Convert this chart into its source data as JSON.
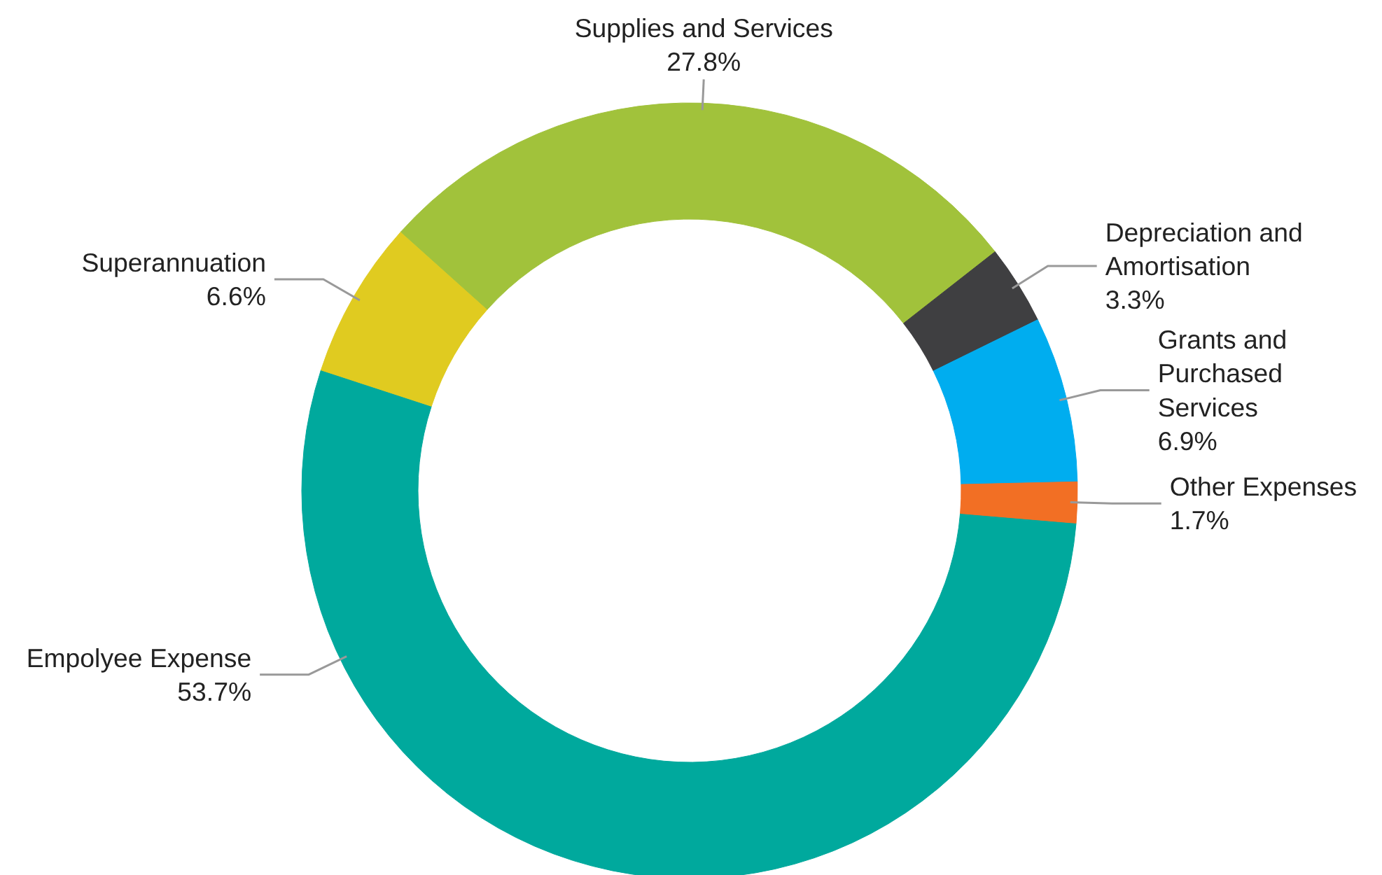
{
  "chart_data": {
    "type": "donut",
    "categories": [
      "Empolyee Expense",
      "Superannuation",
      "Supplies and Services",
      "Depreciation and Amortisation",
      "Grants and Purchased Services",
      "Other Expenses"
    ],
    "values": [
      53.7,
      6.6,
      27.8,
      3.3,
      6.9,
      1.7
    ],
    "value_labels": [
      "53.7%",
      "6.6%",
      "27.8%",
      "3.3%",
      "6.9%",
      "1.7%"
    ],
    "colors": [
      "#00a99d",
      "#e0cb20",
      "#a1c23b",
      "#3f3f41",
      "#00adef",
      "#f26f24"
    ]
  }
}
